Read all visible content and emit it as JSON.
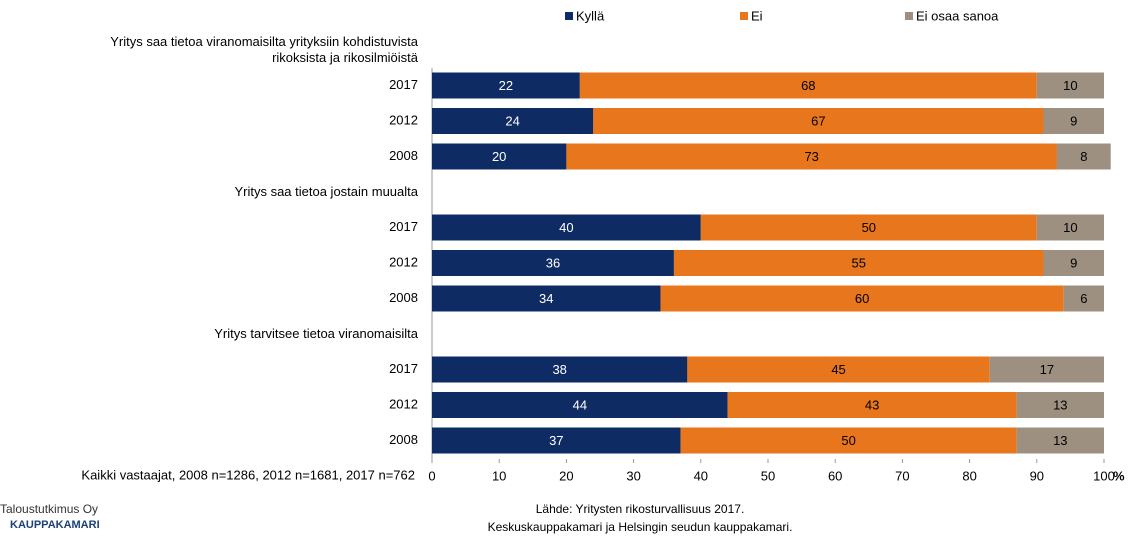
{
  "chart_data": {
    "type": "stacked_bar_horizontal",
    "categories": [
      "Yritys saa tietoa viranomaisilta yrityksiin kohdistuvista\nrikoksista ja rikosilmiöistä",
      "2017",
      "2012",
      "2008",
      "Yritys saa tietoa jostain muualta",
      "2017",
      "2012",
      "2008",
      "Yritys tarvitsee tietoa viranomaisilta",
      "2017",
      "2012",
      "2008"
    ],
    "series": [
      {
        "name": "Kyllä",
        "color": "#0e2b63",
        "values": [
          null,
          22,
          24,
          20,
          null,
          40,
          36,
          34,
          null,
          38,
          44,
          37
        ]
      },
      {
        "name": "Ei",
        "color": "#e8761c",
        "values": [
          null,
          68,
          67,
          73,
          null,
          50,
          55,
          60,
          null,
          45,
          43,
          50
        ]
      },
      {
        "name": "Ei osaa sanoa",
        "color": "#9e9080",
        "values": [
          null,
          10,
          9,
          8,
          null,
          10,
          9,
          6,
          null,
          17,
          13,
          13
        ]
      }
    ],
    "xlim": [
      0,
      100
    ],
    "xticks": [
      0,
      10,
      20,
      30,
      40,
      50,
      60,
      70,
      80,
      90,
      100
    ],
    "x_unit": "%",
    "note": "Kaikki vastaajat, 2008 n=1286, 2012 n=1681, 2017 n=762",
    "source": [
      "Lähde: Yritysten rikosturvallisuus 2017.",
      "Keskuskauppakamari ja Helsingin seudun kauppakamari."
    ],
    "logo": [
      "Taloustutkimus Oy",
      "KAUPPAKAMARI"
    ]
  }
}
